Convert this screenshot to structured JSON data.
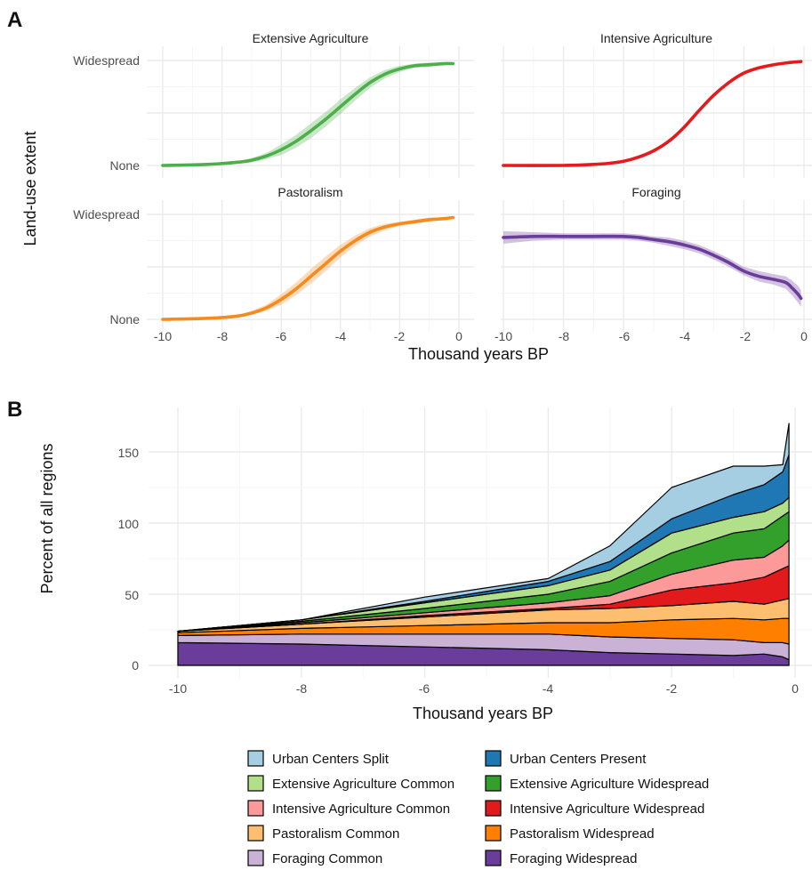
{
  "panel_a": {
    "letter": "A",
    "ylabel": "Land-use extent",
    "xlabel": "Thousand years BP",
    "y_ticks": [
      "None",
      "Widespread"
    ],
    "x_ticks": [
      "-10",
      "-8",
      "-6",
      "-4",
      "-2",
      "0"
    ]
  },
  "panel_b": {
    "letter": "B",
    "ylabel": "Percent of all regions",
    "xlabel": "Thousand years BP",
    "y_ticks": [
      "0",
      "50",
      "100",
      "150"
    ],
    "x_ticks": [
      "-10",
      "-8",
      "-6",
      "-4",
      "-2",
      "0"
    ]
  },
  "colors": {
    "urban_split": "#a6cee3",
    "urban_present": "#1f78b4",
    "ext_common": "#b2df8a",
    "ext_wide": "#33a02c",
    "int_common": "#fb9a99",
    "int_wide": "#e31a1c",
    "past_common": "#fdbf6f",
    "past_wide": "#ff7f00",
    "for_common": "#cab2d6",
    "for_wide": "#6a3d9a"
  },
  "chart_data": [
    {
      "type": "line",
      "title": "Extensive Agriculture",
      "color": "#4daf4a",
      "x": [
        -10,
        -8.5,
        -7.5,
        -7,
        -6.5,
        -6,
        -5.5,
        -5,
        -4.5,
        -4,
        -3.5,
        -3,
        -2.5,
        -2,
        -1.5,
        -1,
        -0.5,
        -0.2
      ],
      "y": [
        0.0,
        0.01,
        0.03,
        0.05,
        0.09,
        0.15,
        0.23,
        0.33,
        0.44,
        0.56,
        0.68,
        0.79,
        0.87,
        0.92,
        0.95,
        0.96,
        0.97,
        0.97
      ],
      "band": [
        0.0,
        0.0,
        0.01,
        0.02,
        0.03,
        0.05,
        0.06,
        0.07,
        0.07,
        0.07,
        0.06,
        0.05,
        0.04,
        0.03,
        0.02,
        0.02,
        0.01,
        0.01
      ],
      "ylim": [
        0,
        1
      ],
      "xlim": [
        -10,
        0
      ]
    },
    {
      "type": "line",
      "title": "Intensive Agriculture",
      "color": "#e41a1c",
      "x": [
        -10,
        -8,
        -7,
        -6.5,
        -6,
        -5.5,
        -5,
        -4.5,
        -4,
        -3.5,
        -3,
        -2.5,
        -2,
        -1.5,
        -1,
        -0.5,
        -0.1
      ],
      "y": [
        0.0,
        0.0,
        0.01,
        0.02,
        0.04,
        0.08,
        0.14,
        0.23,
        0.36,
        0.52,
        0.67,
        0.79,
        0.88,
        0.93,
        0.96,
        0.98,
        0.99
      ],
      "band": [
        0,
        0,
        0,
        0,
        0,
        0,
        0,
        0,
        0,
        0,
        0,
        0,
        0,
        0,
        0,
        0,
        0
      ],
      "ylim": [
        0,
        1
      ],
      "xlim": [
        -10,
        0
      ]
    },
    {
      "type": "line",
      "title": "Pastoralism",
      "color": "#f58a1f",
      "x": [
        -10,
        -8.5,
        -7.5,
        -7,
        -6.5,
        -6,
        -5.5,
        -5,
        -4.5,
        -4,
        -3.5,
        -3,
        -2.5,
        -2,
        -1.5,
        -1,
        -0.5,
        -0.2
      ],
      "y": [
        0.0,
        0.01,
        0.03,
        0.06,
        0.11,
        0.19,
        0.29,
        0.41,
        0.53,
        0.65,
        0.75,
        0.83,
        0.88,
        0.91,
        0.93,
        0.95,
        0.96,
        0.97
      ],
      "band": [
        0.0,
        0.0,
        0.01,
        0.02,
        0.03,
        0.05,
        0.06,
        0.07,
        0.07,
        0.06,
        0.05,
        0.04,
        0.03,
        0.02,
        0.02,
        0.02,
        0.01,
        0.01
      ],
      "ylim": [
        0,
        1
      ],
      "xlim": [
        -10,
        0
      ]
    },
    {
      "type": "line",
      "title": "Foraging",
      "color": "#6a3d9a",
      "x": [
        -10,
        -9,
        -8,
        -7,
        -6,
        -5.5,
        -5,
        -4.5,
        -4,
        -3.5,
        -3,
        -2.5,
        -2,
        -1.5,
        -1,
        -0.6,
        -0.4,
        -0.2,
        -0.1
      ],
      "y": [
        0.78,
        0.79,
        0.79,
        0.79,
        0.79,
        0.78,
        0.76,
        0.74,
        0.71,
        0.67,
        0.61,
        0.54,
        0.46,
        0.41,
        0.38,
        0.35,
        0.3,
        0.24,
        0.2
      ],
      "band": [
        0.06,
        0.04,
        0.03,
        0.03,
        0.03,
        0.03,
        0.03,
        0.04,
        0.04,
        0.04,
        0.04,
        0.04,
        0.04,
        0.05,
        0.05,
        0.06,
        0.07,
        0.08,
        0.08
      ],
      "ylim": [
        0,
        1
      ],
      "xlim": [
        -10,
        0
      ]
    },
    {
      "type": "area",
      "xlabel": "Thousand years BP",
      "ylabel": "Percent of all regions",
      "ylim": [
        0,
        175
      ],
      "xlim": [
        -10.2,
        0.1
      ],
      "x": [
        -10,
        -8,
        -6,
        -4,
        -3,
        -2,
        -1,
        -0.5,
        -0.2,
        -0.1
      ],
      "series": [
        {
          "name": "Foraging Widespread",
          "color": "#6a3d9a",
          "values": [
            16,
            15,
            13,
            11,
            9,
            8,
            7,
            8,
            6,
            4
          ]
        },
        {
          "name": "Foraging Common",
          "color": "#cab2d6",
          "values": [
            5,
            7,
            9,
            11,
            11,
            11,
            11,
            8,
            10,
            11
          ]
        },
        {
          "name": "Pastoralism Widespread",
          "color": "#ff7f00",
          "values": [
            2,
            4,
            6,
            8,
            10,
            13,
            15,
            16,
            17,
            18
          ]
        },
        {
          "name": "Pastoralism Common",
          "color": "#fdbf6f",
          "values": [
            1,
            3,
            6,
            9,
            10,
            10,
            12,
            11,
            13,
            14
          ]
        },
        {
          "name": "Intensive Agriculture Widespread",
          "color": "#e31a1c",
          "values": [
            0,
            0,
            1,
            1,
            3,
            11,
            13,
            19,
            22,
            23
          ]
        },
        {
          "name": "Intensive Agriculture Common",
          "color": "#fb9a99",
          "values": [
            0,
            1,
            2,
            4,
            6,
            11,
            16,
            14,
            16,
            18
          ]
        },
        {
          "name": "Extensive Agriculture Widespread",
          "color": "#33a02c",
          "values": [
            0,
            1,
            3,
            6,
            10,
            15,
            19,
            20,
            21,
            20
          ]
        },
        {
          "name": "Extensive Agriculture Common",
          "color": "#b2df8a",
          "values": [
            0,
            1,
            4,
            6,
            8,
            14,
            11,
            12,
            9,
            10
          ]
        },
        {
          "name": "Urban Centers Present",
          "color": "#1f78b4",
          "values": [
            0,
            0,
            1,
            3,
            6,
            10,
            16,
            19,
            22,
            30
          ]
        },
        {
          "name": "Urban Centers Split",
          "color": "#a6cee3",
          "values": [
            0,
            0,
            3,
            2,
            11,
            22,
            20,
            13,
            5,
            22
          ]
        }
      ]
    }
  ],
  "legend": [
    {
      "label": "Urban Centers Split",
      "color": "#a6cee3"
    },
    {
      "label": "Urban Centers Present",
      "color": "#1f78b4"
    },
    {
      "label": "Extensive Agriculture Common",
      "color": "#b2df8a"
    },
    {
      "label": "Extensive Agriculture Widespread",
      "color": "#33a02c"
    },
    {
      "label": "Intensive Agriculture Common",
      "color": "#fb9a99"
    },
    {
      "label": "Intensive Agriculture Widespread",
      "color": "#e31a1c"
    },
    {
      "label": "Pastoralism Common",
      "color": "#fdbf6f"
    },
    {
      "label": "Pastoralism Widespread",
      "color": "#ff7f00"
    },
    {
      "label": "Foraging Common",
      "color": "#cab2d6"
    },
    {
      "label": "Foraging Widespread",
      "color": "#6a3d9a"
    }
  ]
}
